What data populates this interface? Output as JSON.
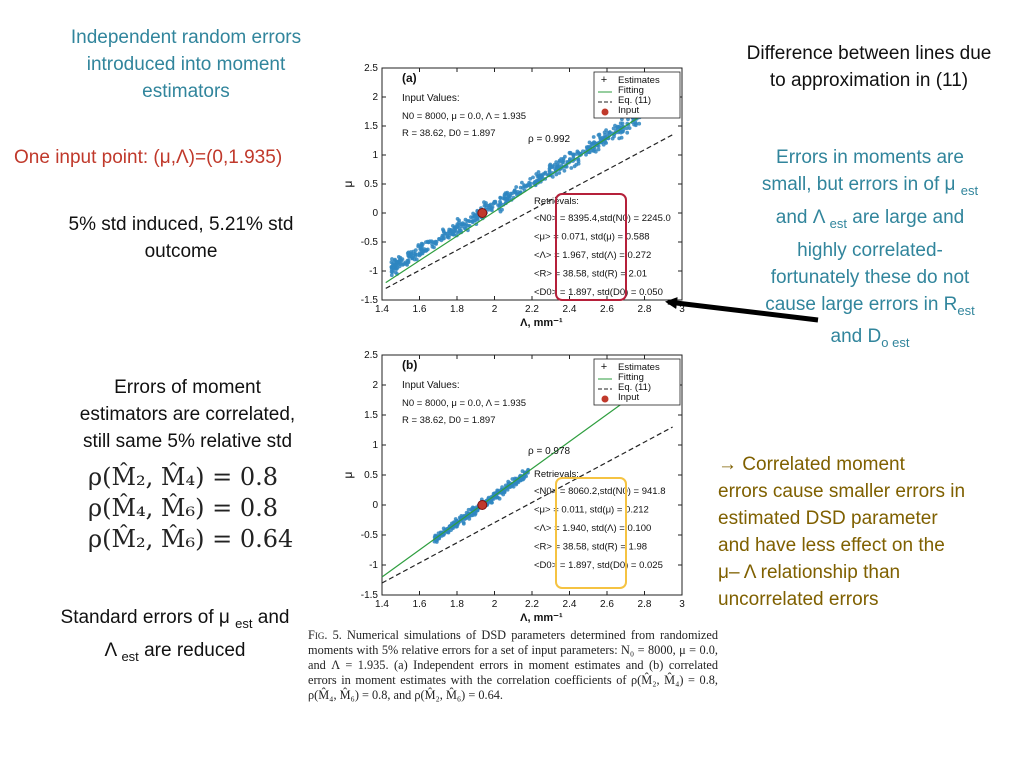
{
  "left": {
    "top_note": [
      "Independent random errors",
      "introduced into moment",
      "estimators"
    ],
    "input_point": "One input point: (μ,Λ)=(0,1.935)",
    "std_note": [
      "5% std induced, 5.21% std",
      "outcome"
    ],
    "correlated_note": [
      "Errors of moment",
      "estimators are correlated,",
      "still same 5% relative std"
    ],
    "rho_lines": [
      {
        "pair": "(M̂₂, M̂₄)",
        "value": "0.8"
      },
      {
        "pair": "(M̂₄, M̂₆)",
        "value": "0.8"
      },
      {
        "pair": "(M̂₂, M̂₆)",
        "value": "0.64"
      }
    ],
    "rho_symbol": "ρ",
    "standard_errors": {
      "l1a": "Standard errors of μ",
      "l1b": "est",
      "l1c": " and",
      "l2a": "Λ",
      "l2b": "est",
      "l2c": " are reduced"
    }
  },
  "right": {
    "top_note": [
      "Difference between lines due",
      "to approximation in (11)"
    ],
    "errors_note": {
      "l1": "Errors in moments are",
      "l2a": "small, but errors in of μ",
      "l2b": "est",
      "l3a": "and Λ",
      "l3b": "est",
      "l3c": " are large and",
      "l4": "highly correlated-",
      "l5": "fortunately these do not",
      "l6a": "cause large errors in R",
      "l6b": "est",
      "l7a": "and D",
      "l7b": "o est"
    },
    "correlated_note": [
      "→ Correlated moment",
      "errors cause smaller errors in",
      "estimated DSD parameter",
      "and have less effect on the",
      "μ– Λ relationship than",
      "uncorrelated errors"
    ]
  },
  "colors": {
    "teal": "#31859c",
    "red_box": "#b5203a",
    "yellow_box": "#f5c342",
    "scatter": "#2e86c1",
    "input_marker": "#c0392b",
    "fitting": "#2e9e3f",
    "eq11": "#222222"
  },
  "chart_data": [
    {
      "type": "scatter",
      "panel": "(a)",
      "xlabel": "Λ, mm⁻¹",
      "ylabel": "μ",
      "xlim": [
        1.4,
        3.0
      ],
      "ylim": [
        -1.5,
        2.5
      ],
      "xticks": [
        "1.4",
        "1.6",
        "1.8",
        "2",
        "2.2",
        "2.4",
        "2.6",
        "2.8",
        "3"
      ],
      "yticks": [
        "-1.5",
        "-1",
        "-0.5",
        "0",
        "0.5",
        "1",
        "1.5",
        "2",
        "2.5"
      ],
      "legend": [
        "Estimates",
        "Fitting",
        "Eq. (11)",
        "Input"
      ],
      "input_values": [
        "Input Values:",
        "N0 = 8000, μ = 0.0, Λ = 1.935",
        "R = 38.62, D0 = 1.897"
      ],
      "rho": "ρ = 0.992",
      "retrievals_title": "Retrievals:",
      "retrievals": [
        "<N0> = 8395.4,std(N0) = 2245.0",
        "<μ> = 0.071, std(μ) = 0.588",
        "<Λ> = 1.967, std(Λ) = 0.272",
        "<R> = 38.58, std(R) = 2.01",
        "<D0> = 1.897, std(D0) = 0.050"
      ],
      "input_point": {
        "x": 1.935,
        "y": 0.0
      },
      "cloud": {
        "x_range": [
          1.45,
          2.8
        ],
        "slope": 1.95,
        "spread": 0.12,
        "count": 520
      },
      "fitting": [
        [
          1.42,
          -1.2
        ],
        [
          2.85,
          1.82
        ]
      ],
      "eq11": [
        [
          1.42,
          -1.3
        ],
        [
          2.95,
          1.35
        ]
      ]
    },
    {
      "type": "scatter",
      "panel": "(b)",
      "xlabel": "Λ, mm⁻¹",
      "ylabel": "μ",
      "xlim": [
        1.4,
        3.0
      ],
      "ylim": [
        -1.5,
        2.5
      ],
      "xticks": [
        "1.4",
        "1.6",
        "1.8",
        "2",
        "2.2",
        "2.4",
        "2.6",
        "2.8",
        "3"
      ],
      "yticks": [
        "-1.5",
        "-1",
        "-0.5",
        "0",
        "0.5",
        "1",
        "1.5",
        "2",
        "2.5"
      ],
      "legend": [
        "Estimates",
        "Fitting",
        "Eq. (11)",
        "Input"
      ],
      "input_values": [
        "Input Values:",
        "N0 = 8000, μ = 0.0, Λ = 1.935",
        "R = 38.62, D0 = 1.897"
      ],
      "rho": "ρ = 0.978",
      "retrievals_title": "Retrievals:",
      "retrievals": [
        "<N0> = 8060.2,std(N0) = 941.8",
        "<μ> = 0.011, std(μ) = 0.212",
        "<Λ> = 1.940, std(Λ) = 0.100",
        "<R> = 38.58, std(R) = 1.98",
        "<D0> = 1.897, std(D0) = 0.025"
      ],
      "input_point": {
        "x": 1.935,
        "y": 0.0
      },
      "cloud": {
        "x_range": [
          1.68,
          2.18
        ],
        "slope": 2.2,
        "spread": 0.07,
        "count": 300
      },
      "fitting": [
        [
          1.4,
          -1.2
        ],
        [
          2.95,
          2.3
        ]
      ],
      "eq11": [
        [
          1.4,
          -1.3
        ],
        [
          2.95,
          1.3
        ]
      ]
    }
  ],
  "caption": {
    "fig": "Fig. 5.",
    "text": " Numerical simulations of DSD parameters determined from randomized moments with 5% relative errors for a set of input parameters: N₀ = 8000, μ = 0.0, and Λ = 1.935. (a) Independent errors in moment estimates and (b) correlated errors in moment estimates with the correlation coefficients of ρ(M̂₂, M̂₄) = 0.8, ρ(M̂₄, M̂₆) = 0.8, and ρ(M̂₂, M̂₆) = 0.64."
  }
}
